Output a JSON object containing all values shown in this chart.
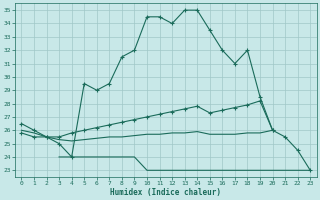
{
  "xlabel": "Humidex (Indice chaleur)",
  "bg_color": "#c8e8e8",
  "line_color": "#1a6b5a",
  "grid_color": "#a0c8c8",
  "xlim": [
    -0.5,
    23.5
  ],
  "ylim": [
    22.5,
    35.5
  ],
  "yticks": [
    23,
    24,
    25,
    26,
    27,
    28,
    29,
    30,
    31,
    32,
    33,
    34,
    35
  ],
  "xticks": [
    0,
    1,
    2,
    3,
    4,
    5,
    6,
    7,
    8,
    9,
    10,
    11,
    12,
    13,
    14,
    15,
    16,
    17,
    18,
    19,
    20,
    21,
    22,
    23
  ],
  "line1_x": [
    0,
    1,
    2,
    3,
    4,
    5,
    6,
    7,
    8,
    9,
    10,
    11,
    12,
    13,
    14,
    15,
    16,
    17,
    18,
    19,
    20,
    21,
    22,
    23
  ],
  "line1_y": [
    26.5,
    26.0,
    25.5,
    25.0,
    24.0,
    29.5,
    29.0,
    29.5,
    31.5,
    32.0,
    34.5,
    34.5,
    34.0,
    35.0,
    35.0,
    33.5,
    32.0,
    31.0,
    32.0,
    28.5,
    26.0,
    25.5,
    24.5,
    23.0
  ],
  "line2_x": [
    0,
    1,
    2,
    3,
    4,
    5,
    6,
    7,
    8,
    9,
    10,
    11,
    12,
    13,
    14,
    15,
    16,
    17,
    18,
    19,
    20
  ],
  "line2_y": [
    25.8,
    25.5,
    25.5,
    25.5,
    25.8,
    26.0,
    26.2,
    26.4,
    26.6,
    26.8,
    27.0,
    27.2,
    27.4,
    27.6,
    27.8,
    27.3,
    27.5,
    27.7,
    27.9,
    28.2,
    26.0
  ],
  "line3_x": [
    0,
    1,
    2,
    3,
    4,
    5,
    6,
    7,
    8,
    9,
    10,
    11,
    12,
    13,
    14,
    15,
    16,
    17,
    18,
    19,
    20
  ],
  "line3_y": [
    26.0,
    25.8,
    25.5,
    25.3,
    25.2,
    25.3,
    25.4,
    25.5,
    25.5,
    25.6,
    25.7,
    25.7,
    25.8,
    25.8,
    25.9,
    25.7,
    25.7,
    25.7,
    25.8,
    25.8,
    26.0
  ],
  "line4_x": [
    3,
    4,
    5,
    6,
    7,
    8,
    9,
    10,
    11,
    12,
    13,
    14,
    15,
    16,
    17,
    18,
    19,
    20,
    22,
    23
  ],
  "line4_y": [
    24.0,
    24.0,
    24.0,
    24.0,
    24.0,
    24.0,
    24.0,
    23.0,
    23.0,
    23.0,
    23.0,
    23.0,
    23.0,
    23.0,
    23.0,
    23.0,
    23.0,
    23.0,
    23.0,
    23.0
  ]
}
